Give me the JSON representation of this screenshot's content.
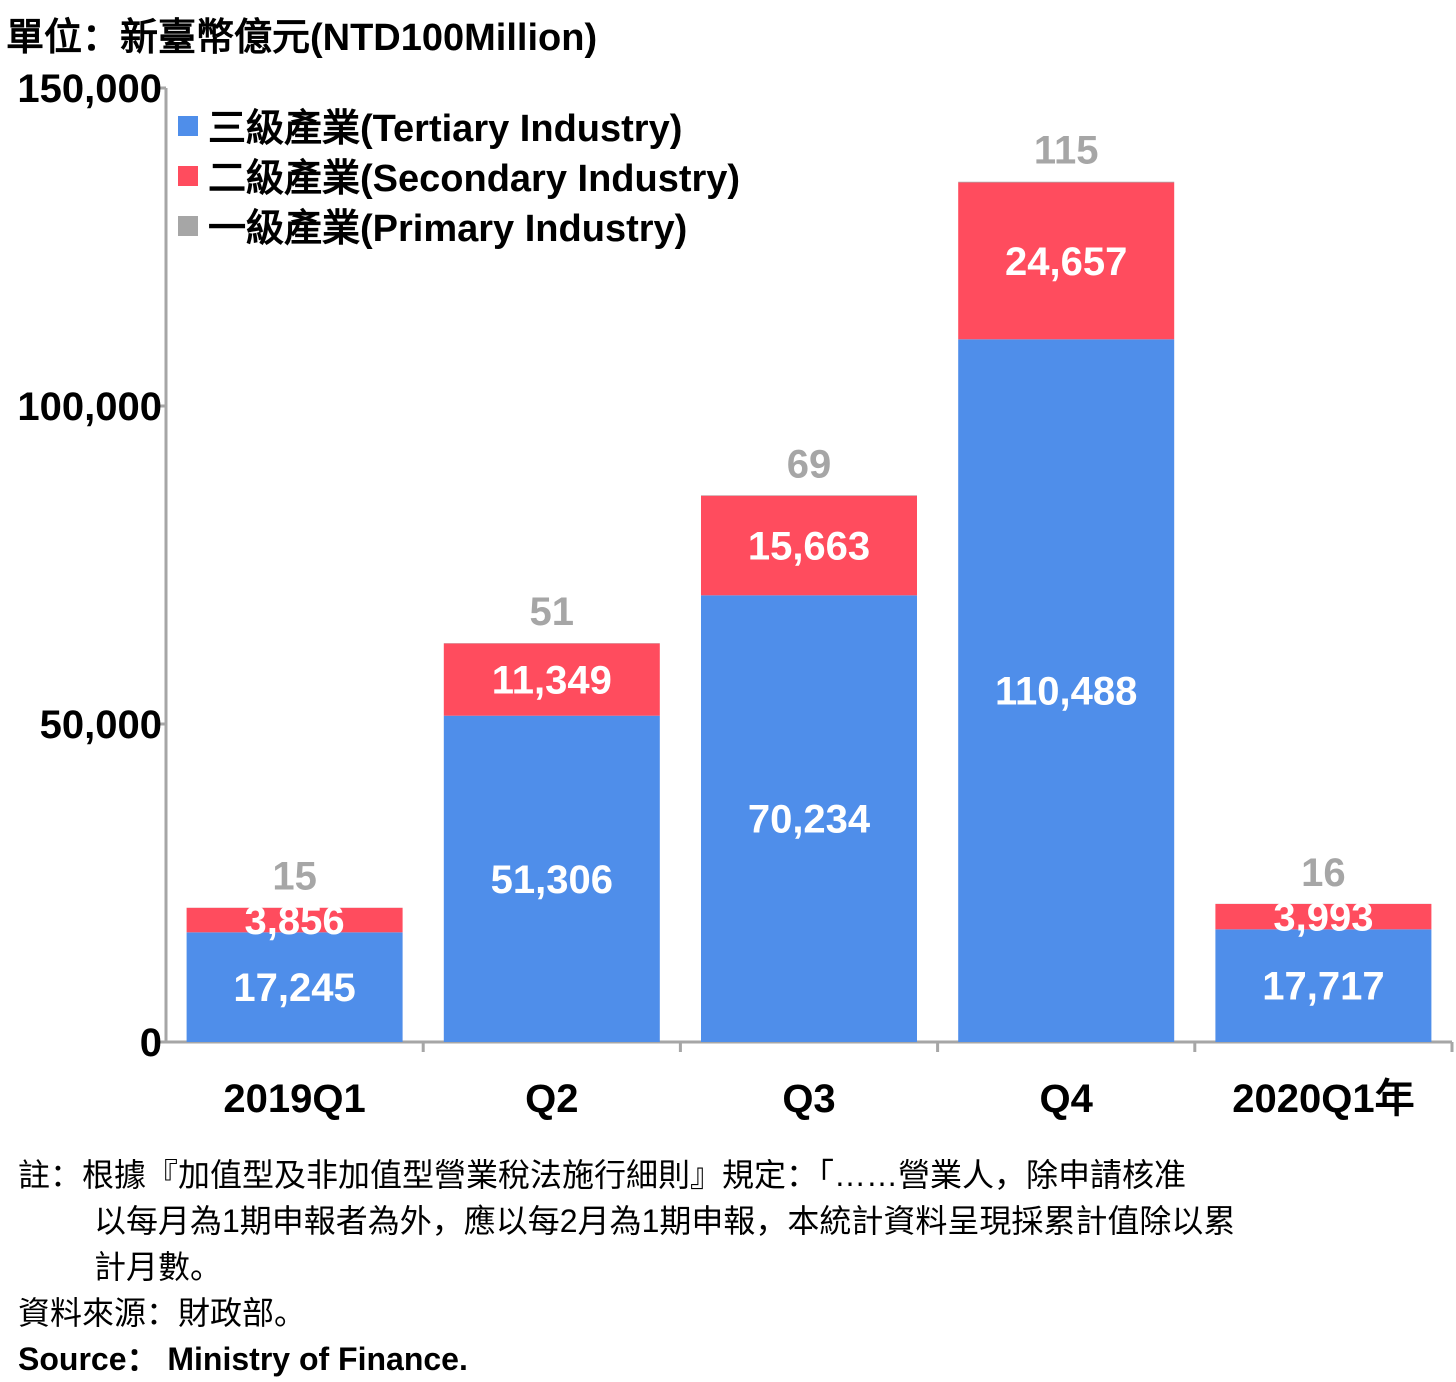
{
  "chart_data": {
    "type": "bar",
    "stacked": true,
    "unit_label": "單位：新臺幣億元(NTD100Million)",
    "categories": [
      "2019Q1",
      "Q2",
      "Q3",
      "Q4",
      "2020Q1年"
    ],
    "series": [
      {
        "name": "三級產業(Tertiary Industry)",
        "color": "#4F8EEA",
        "values": [
          17245,
          51306,
          70234,
          110488,
          17717
        ],
        "label_color": "#ffffff"
      },
      {
        "name": "二級產業(Secondary Industry)",
        "color": "#FF4C5E",
        "values": [
          3856,
          11349,
          15663,
          24657,
          3993
        ],
        "label_color": "#ffffff"
      },
      {
        "name": "一級產業(Primary Industry)",
        "color": "#A6A6A6",
        "values": [
          15,
          51,
          69,
          115,
          16
        ],
        "label_color": "#A6A6A6"
      }
    ],
    "ylim": [
      0,
      150000
    ],
    "yticks": [
      "0",
      "50,000",
      "100,000",
      "150,000"
    ],
    "ytick_values": [
      0,
      50000,
      100000,
      150000
    ],
    "grid": false,
    "legend_position": "top-left"
  },
  "notes": {
    "note_line1": "註：根據『加值型及非加值型營業稅法施行細則』規定：「……營業人，除申請核准",
    "note_line2": "以每月為1期申報者為外，應以每2月為1期申報，本統計資料呈現採累計值除以累",
    "note_line3": "計月數。",
    "source_zh": "資料來源：財政部。",
    "source_en": "Source： Ministry of Finance."
  }
}
